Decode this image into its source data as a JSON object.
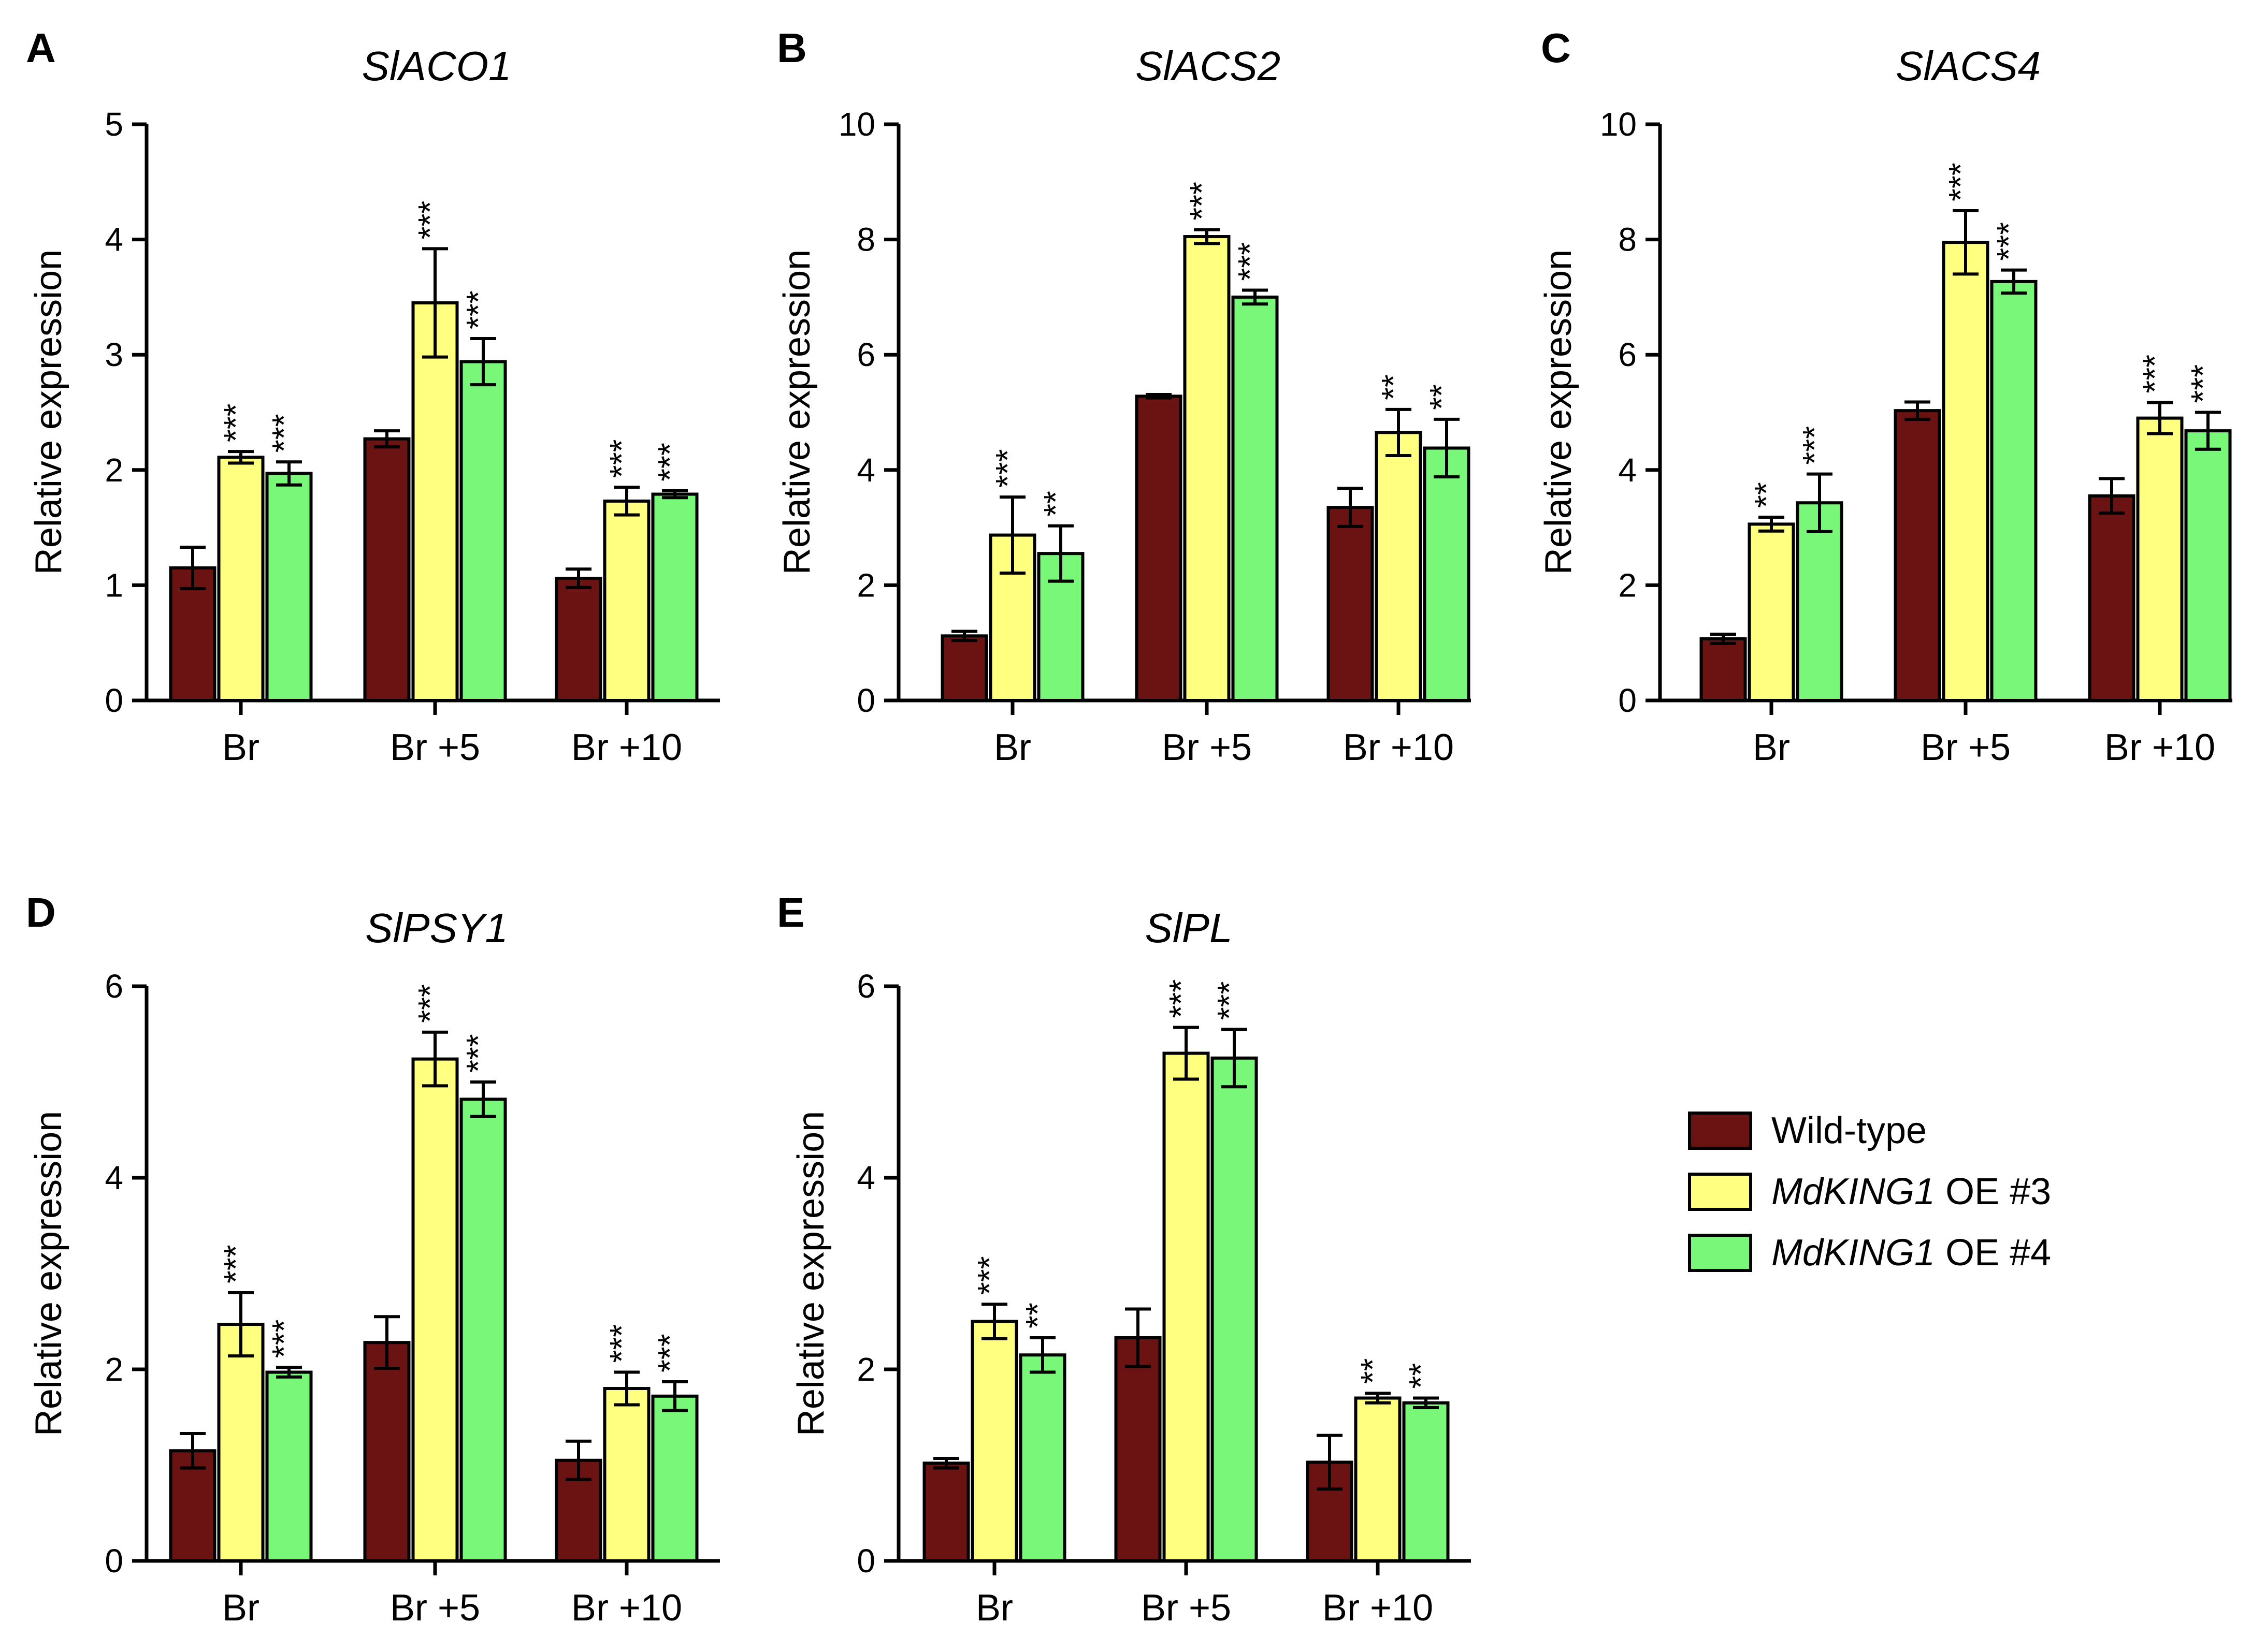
{
  "legend": {
    "items": [
      {
        "name_italic": "",
        "name_plain": "Wild-type",
        "color": "#6b1212"
      },
      {
        "name_italic": "MdKING1",
        "name_plain": " OE #3",
        "color": "#ffff80"
      },
      {
        "name_italic": "MdKING1",
        "name_plain": " OE #4",
        "color": "#78f778"
      }
    ]
  },
  "chart_data": [
    {
      "type": "bar",
      "panel": "A",
      "title": "SlACO1",
      "ylabel": "Relative expression",
      "ylim": [
        0,
        5
      ],
      "yticks": [
        0,
        1,
        2,
        3,
        4,
        5
      ],
      "categories": [
        "Br",
        "Br +5",
        "Br +10"
      ],
      "series": [
        {
          "name": "Wild-type",
          "values": [
            1.15,
            2.27,
            1.06
          ],
          "errors": [
            0.18,
            0.07,
            0.08
          ],
          "sig": [
            "",
            "",
            ""
          ]
        },
        {
          "name": "MdKING1 OE #3",
          "values": [
            2.11,
            3.45,
            1.73
          ],
          "errors": [
            0.05,
            0.47,
            0.12
          ],
          "sig": [
            "***",
            "***",
            "***"
          ]
        },
        {
          "name": "MdKING1 OE #4",
          "values": [
            1.97,
            2.94,
            1.79
          ],
          "errors": [
            0.1,
            0.2,
            0.03
          ],
          "sig": [
            "***",
            "***",
            "***"
          ]
        }
      ]
    },
    {
      "type": "bar",
      "panel": "B",
      "title": "SlACS2",
      "ylabel": "Relative expression",
      "ylim": [
        0,
        10
      ],
      "yticks": [
        0,
        2,
        4,
        6,
        8,
        10
      ],
      "categories": [
        "Br",
        "Br +5",
        "Br +10"
      ],
      "series": [
        {
          "name": "Wild-type",
          "values": [
            1.12,
            5.28,
            3.35
          ],
          "errors": [
            0.08,
            0.03,
            0.33
          ],
          "sig": [
            "",
            "",
            ""
          ]
        },
        {
          "name": "MdKING1 OE #3",
          "values": [
            2.87,
            8.05,
            4.65
          ],
          "errors": [
            0.66,
            0.12,
            0.4
          ],
          "sig": [
            "***",
            "***",
            "**"
          ]
        },
        {
          "name": "MdKING1 OE #4",
          "values": [
            2.55,
            7.0,
            4.38
          ],
          "errors": [
            0.48,
            0.12,
            0.5
          ],
          "sig": [
            "**",
            "***",
            "**"
          ]
        }
      ]
    },
    {
      "type": "bar",
      "panel": "C",
      "title": "SlACS4",
      "ylabel": "Relative expression",
      "ylim": [
        0,
        10
      ],
      "yticks": [
        0,
        2,
        4,
        6,
        8,
        10
      ],
      "categories": [
        "Br",
        "Br +5",
        "Br +10"
      ],
      "series": [
        {
          "name": "Wild-type",
          "values": [
            1.07,
            5.03,
            3.55
          ],
          "errors": [
            0.08,
            0.15,
            0.3
          ],
          "sig": [
            "",
            "",
            ""
          ]
        },
        {
          "name": "MdKING1 OE #3",
          "values": [
            3.06,
            7.95,
            4.9
          ],
          "errors": [
            0.12,
            0.55,
            0.27
          ],
          "sig": [
            "**",
            "***",
            "***"
          ]
        },
        {
          "name": "MdKING1 OE #4",
          "values": [
            3.43,
            7.27,
            4.68
          ],
          "errors": [
            0.5,
            0.2,
            0.32
          ],
          "sig": [
            "***",
            "***",
            "***"
          ]
        }
      ]
    },
    {
      "type": "bar",
      "panel": "D",
      "title": "SlPSY1",
      "ylabel": "Relative expression",
      "ylim": [
        0,
        6
      ],
      "yticks": [
        0,
        2,
        4,
        6
      ],
      "categories": [
        "Br",
        "Br +5",
        "Br +10"
      ],
      "series": [
        {
          "name": "Wild-type",
          "values": [
            1.15,
            2.28,
            1.05
          ],
          "errors": [
            0.18,
            0.27,
            0.2
          ],
          "sig": [
            "",
            "",
            ""
          ]
        },
        {
          "name": "MdKING1 OE #3",
          "values": [
            2.47,
            5.24,
            1.8
          ],
          "errors": [
            0.33,
            0.28,
            0.17
          ],
          "sig": [
            "***",
            "***",
            "***"
          ]
        },
        {
          "name": "MdKING1 OE #4",
          "values": [
            1.97,
            4.82,
            1.72
          ],
          "errors": [
            0.05,
            0.18,
            0.15
          ],
          "sig": [
            "***",
            "***",
            "***"
          ]
        }
      ]
    },
    {
      "type": "bar",
      "panel": "E",
      "title": "SlPL",
      "ylabel": "Relative expression",
      "ylim": [
        0,
        6
      ],
      "yticks": [
        0,
        2,
        4,
        6
      ],
      "categories": [
        "Br",
        "Br +5",
        "Br +10"
      ],
      "series": [
        {
          "name": "Wild-type",
          "values": [
            1.02,
            2.33,
            1.03
          ],
          "errors": [
            0.05,
            0.3,
            0.28
          ],
          "sig": [
            "",
            "",
            ""
          ]
        },
        {
          "name": "MdKING1 OE #3",
          "values": [
            2.5,
            5.3,
            1.7
          ],
          "errors": [
            0.18,
            0.27,
            0.05
          ],
          "sig": [
            "***",
            "***",
            "**"
          ]
        },
        {
          "name": "MdKING1 OE #4",
          "values": [
            2.15,
            5.25,
            1.65
          ],
          "errors": [
            0.18,
            0.3,
            0.05
          ],
          "sig": [
            "**",
            "***",
            "**"
          ]
        }
      ]
    }
  ]
}
